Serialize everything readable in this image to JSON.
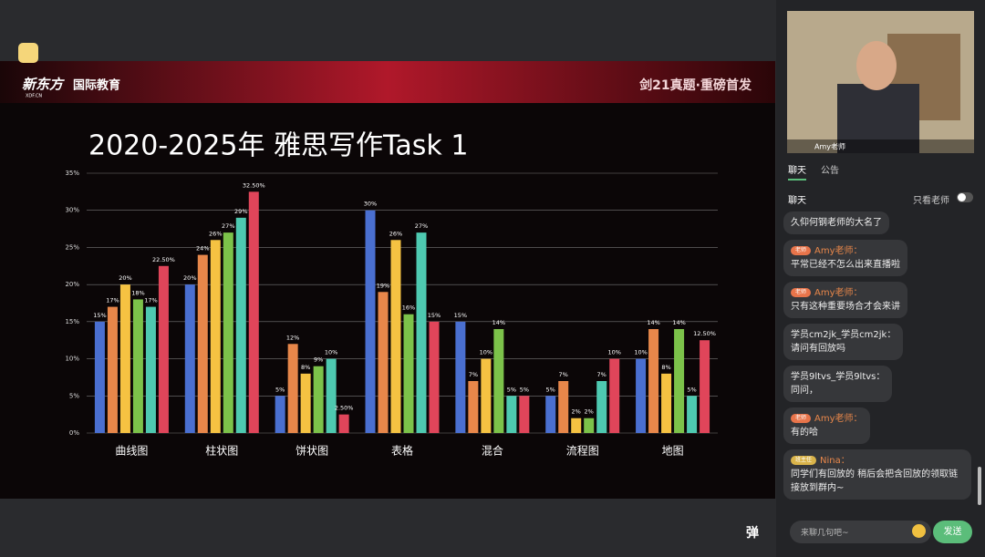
{
  "header": {
    "logo": "新东方",
    "logo_sub": "XDF.CN",
    "brand": "国际教育",
    "banner": "剑21真题·重磅首发"
  },
  "chart_data": {
    "type": "bar",
    "title": "2020-2025年 雅思写作Task 1",
    "categories": [
      "曲线图",
      "柱状图",
      "饼状图",
      "表格",
      "混合",
      "流程图",
      "地图"
    ],
    "series": [
      {
        "color": "#4a6fd0",
        "values": [
          15,
          20,
          5,
          30,
          15,
          5,
          10
        ],
        "value_labels": [
          "15%",
          "20%",
          "5%",
          "30%",
          "15%",
          "5%",
          "10%"
        ]
      },
      {
        "color": "#e8874a",
        "values": [
          17,
          24,
          12,
          19,
          7,
          7,
          14
        ],
        "value_labels": [
          "17%",
          "24%",
          "12%",
          "19%",
          "7%",
          "7%",
          "14%"
        ]
      },
      {
        "color": "#f5c242",
        "values": [
          20,
          26,
          8,
          26,
          10,
          2,
          8
        ],
        "value_labels": [
          "20%",
          "26%",
          "8%",
          "26%",
          "10%",
          "2%",
          "8%"
        ]
      },
      {
        "color": "#7cc24a",
        "values": [
          18,
          27,
          9,
          16,
          14,
          2,
          14
        ],
        "value_labels": [
          "18%",
          "27%",
          "9%",
          "16%",
          "14%",
          "2%",
          "14%"
        ]
      },
      {
        "color": "#4ec9b0",
        "values": [
          17,
          29,
          10,
          27,
          5,
          7,
          5
        ],
        "value_labels": [
          "17%",
          "29%",
          "10%",
          "27%",
          "5%",
          "7%",
          "5%"
        ]
      },
      {
        "color": "#e0455a",
        "values": [
          22.5,
          32.5,
          2.5,
          15,
          5,
          10,
          12.5
        ],
        "value_labels": [
          "22.50%",
          "32.50%",
          "2.50%",
          "15%",
          "5%",
          "10%",
          "12.50%"
        ]
      }
    ],
    "ylim": [
      0,
      35
    ],
    "yticks": [
      {
        "value": 0,
        "label": "0%"
      },
      {
        "value": 5,
        "label": "5%"
      },
      {
        "value": 10,
        "label": "10%"
      },
      {
        "value": 15,
        "label": "15%"
      },
      {
        "value": 20,
        "label": "20%"
      },
      {
        "value": 25,
        "label": "25%"
      },
      {
        "value": 30,
        "label": "30%"
      },
      {
        "value": 35,
        "label": "35%"
      }
    ],
    "grid": true
  },
  "video": {
    "speaker": "Amy老师"
  },
  "tabs": [
    "聊天",
    "公告"
  ],
  "chat": {
    "title": "聊天",
    "filter": "只看老师",
    "messages": [
      {
        "text": "久仰何钢老师的大名了"
      },
      {
        "badge": "老师",
        "name": "Amy老师：",
        "text": "平常已经不怎么出来直播啦"
      },
      {
        "badge": "老师",
        "name": "Amy老师：",
        "text": "只有这种重要场合才会来讲"
      },
      {
        "name": "学员cm2jk_学员cm2jk：",
        "text": "请问有回放吗"
      },
      {
        "name": "学员9ltvs_学员9ltvs：",
        "text": "同问，"
      },
      {
        "badge": "老师",
        "name": "Amy老师：",
        "text": "有的哈"
      },
      {
        "badge": "班主任",
        "name": "Nina：",
        "text": "同学们有回放的 稍后会把含回放的领取链接放到群内~"
      }
    ],
    "input_placeholder": "来聊几句吧~",
    "send": "发送"
  },
  "danmaku": "弹"
}
